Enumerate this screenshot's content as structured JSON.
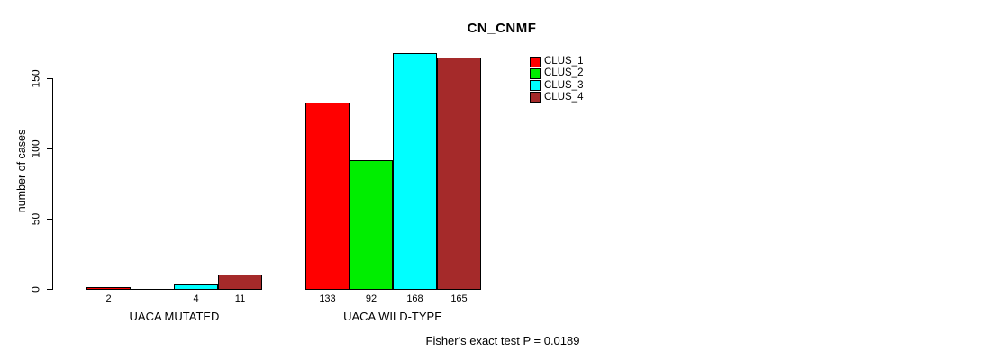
{
  "chart_data": {
    "type": "bar",
    "title": "CN_CNMF",
    "ylabel": "number of cases",
    "xlabel": "",
    "ylim": [
      0,
      150
    ],
    "yticks": [
      0,
      50,
      100,
      150
    ],
    "grid": false,
    "legend_position": "top-right",
    "categories": [
      "UACA MUTATED",
      "UACA WILD-TYPE"
    ],
    "series": [
      {
        "name": "CLUS_1",
        "color": "#ff0000",
        "values": [
          2,
          133
        ]
      },
      {
        "name": "CLUS_2",
        "color": "#00ee00",
        "values": [
          0,
          92
        ]
      },
      {
        "name": "CLUS_3",
        "color": "#00ffff",
        "values": [
          4,
          168
        ]
      },
      {
        "name": "CLUS_4",
        "color": "#a52a2a",
        "values": [
          11,
          165
        ]
      }
    ],
    "value_labels_shown": true,
    "zero_value_labels_hidden": true,
    "annotation": "Fisher's exact test P = 0.0189"
  }
}
